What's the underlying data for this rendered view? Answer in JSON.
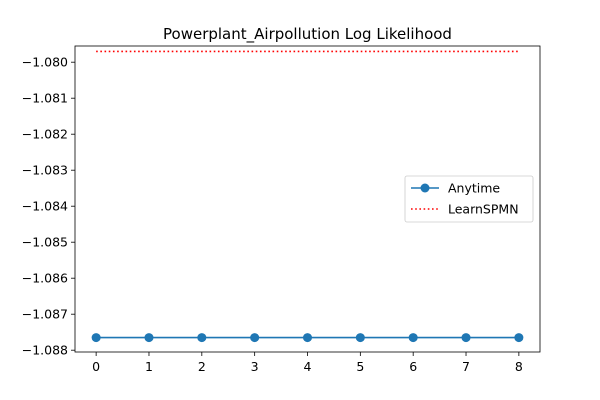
{
  "chart_data": {
    "type": "line",
    "title": "Powerplant_Airpollution Log Likelihood",
    "xlabel": "",
    "ylabel": "",
    "x": [
      0,
      1,
      2,
      3,
      4,
      5,
      6,
      7,
      8
    ],
    "xlim": [
      -0.4,
      8.4
    ],
    "ylim": [
      -1.08805,
      -1.07955
    ],
    "x_ticks": [
      0,
      1,
      2,
      3,
      4,
      5,
      6,
      7,
      8
    ],
    "y_ticks": [
      -1.08,
      -1.081,
      -1.082,
      -1.083,
      -1.084,
      -1.085,
      -1.086,
      -1.087,
      -1.088
    ],
    "y_tick_labels": [
      "−1.080",
      "−1.081",
      "−1.082",
      "−1.083",
      "−1.084",
      "−1.085",
      "−1.086",
      "−1.087",
      "−1.088"
    ],
    "grid": false,
    "legend_position": "center-right",
    "series": [
      {
        "name": "Anytime",
        "style": "solid-line-with-circle-markers",
        "color": "#1f77b4",
        "values": [
          -1.08765,
          -1.08765,
          -1.08765,
          -1.08765,
          -1.08765,
          -1.08765,
          -1.08765,
          -1.08765,
          -1.08765
        ]
      },
      {
        "name": "LearnSPMN",
        "style": "dotted-line",
        "color": "#ff0000",
        "values": [
          -1.0797,
          -1.0797,
          -1.0797,
          -1.0797,
          -1.0797,
          -1.0797,
          -1.0797,
          -1.0797,
          -1.0797
        ]
      }
    ]
  }
}
